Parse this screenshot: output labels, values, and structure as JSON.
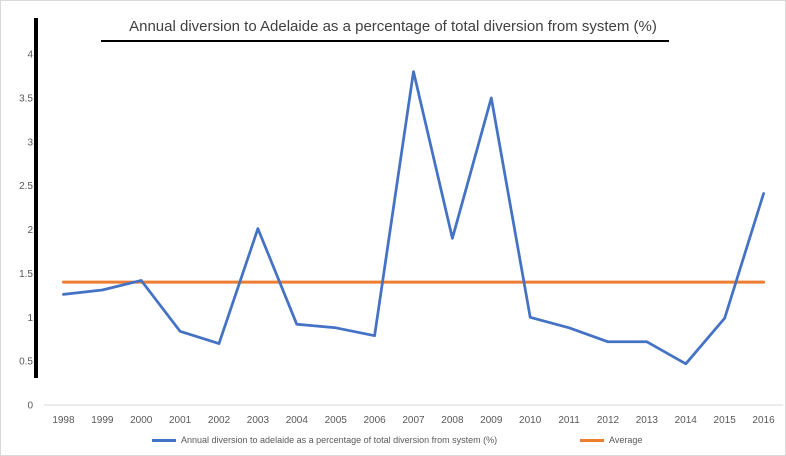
{
  "chart_data": {
    "type": "line",
    "title": "Annual diversion to Adelaide as a percentage of total diversion from system (%)",
    "xlabel": "",
    "ylabel": "",
    "categories": [
      "1998",
      "1999",
      "2000",
      "2001",
      "2002",
      "2003",
      "2004",
      "2005",
      "2006",
      "2007",
      "2008",
      "2009",
      "2010",
      "2011",
      "2012",
      "2013",
      "2014",
      "2015",
      "2016"
    ],
    "series": [
      {
        "name": "Annual diversion to adelaide as a percentage of total diversion from system (%)",
        "color": "#4472c4",
        "values": [
          1.26,
          1.31,
          1.42,
          0.84,
          0.7,
          2.01,
          0.92,
          0.88,
          0.79,
          3.8,
          1.9,
          3.5,
          1.0,
          0.88,
          0.72,
          0.72,
          0.47,
          0.99,
          2.41
        ]
      },
      {
        "name": "Average",
        "color": "#ed7d31",
        "values": [
          1.4,
          1.4,
          1.4,
          1.4,
          1.4,
          1.4,
          1.4,
          1.4,
          1.4,
          1.4,
          1.4,
          1.4,
          1.4,
          1.4,
          1.4,
          1.4,
          1.4,
          1.4,
          1.4
        ]
      }
    ],
    "ylim": [
      0,
      4
    ],
    "yticks": [
      "0",
      "0.5",
      "1",
      "1.5",
      "2",
      "2.5",
      "3",
      "3.5",
      "4"
    ],
    "grid": false,
    "legend_position": "bottom"
  }
}
